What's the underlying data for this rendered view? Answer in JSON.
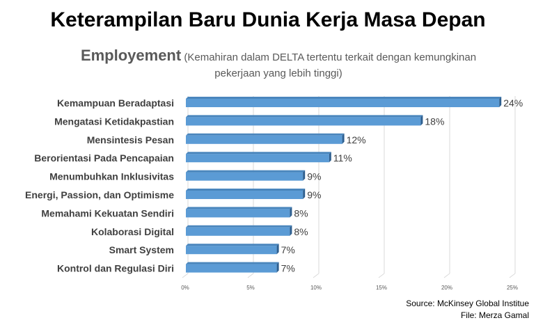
{
  "title": "Keterampilan Baru Dunia Kerja Masa Depan",
  "chart_data": {
    "type": "bar",
    "orientation": "horizontal",
    "title": "Employement",
    "subtitle": "(Kemahiran dalam DELTA tertentu terkait dengan kemungkinan pekerjaan yang lebih tinggi)",
    "categories": [
      "Kemampuan Beradaptasi",
      "Mengatasi Ketidakpastian",
      "Mensintesis Pesan",
      "Berorientasi Pada Pencapaian",
      "Menumbuhkan Inklusivitas",
      "Energi, Passion, dan Optimisme",
      "Memahami Kekuatan Sendiri",
      "Kolaborasi Digital",
      "Smart System",
      "Kontrol dan Regulasi Diri"
    ],
    "values": [
      24,
      18,
      12,
      11,
      9,
      9,
      8,
      8,
      7,
      7
    ],
    "data_labels": [
      "24%",
      "18%",
      "12%",
      "11%",
      "9%",
      "9%",
      "8%",
      "8%",
      "7%",
      "7%"
    ],
    "xticks": [
      "0%",
      "5%",
      "10%",
      "15%",
      "20%",
      "25%"
    ],
    "xlim": [
      0,
      25
    ],
    "grid": true,
    "bar_color": "#5b9bd5"
  },
  "source": "Source: McKinsey Global Institue",
  "file": "File: Merza Gamal"
}
